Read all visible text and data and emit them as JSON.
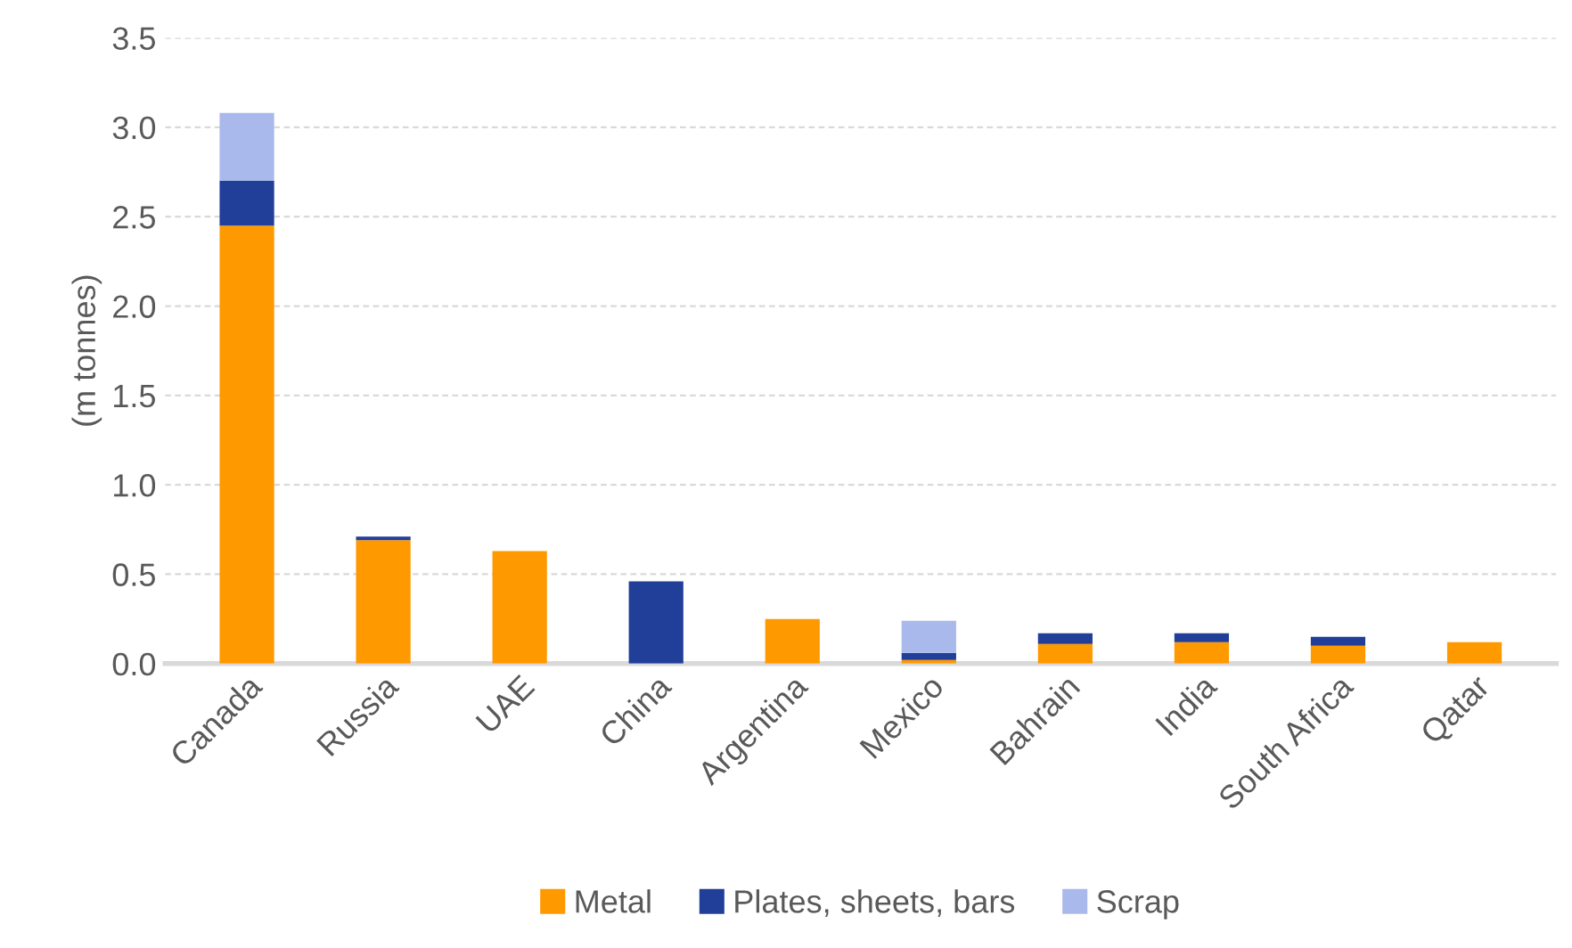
{
  "chart_data": {
    "type": "bar",
    "stacked": true,
    "ylabel": "(m tonnes)",
    "categories": [
      "Canada",
      "Russia",
      "UAE",
      "China",
      "Argentina",
      "Mexico",
      "Bahrain",
      "India",
      "South Africa",
      "Qatar"
    ],
    "series": [
      {
        "name": "Metal",
        "color": "#ff9900",
        "values": [
          2.45,
          0.69,
          0.63,
          0,
          0.25,
          0.02,
          0.11,
          0.12,
          0.1,
          0.12
        ]
      },
      {
        "name": "Plates, sheets, bars",
        "color": "#213f99",
        "values": [
          0.25,
          0.02,
          0,
          0.46,
          0,
          0.04,
          0.06,
          0.05,
          0.05,
          0
        ]
      },
      {
        "name": "Scrap",
        "color": "#a9b9eb",
        "values": [
          0.38,
          0,
          0,
          0,
          0,
          0.18,
          0,
          0,
          0,
          0
        ]
      }
    ],
    "ylim": [
      0,
      3.5
    ],
    "yticks": [
      {
        "value": 0,
        "label": "0.0"
      },
      0.5,
      {
        "value": 1,
        "label": "1.0"
      },
      1.5,
      {
        "value": 2,
        "label": "2.0"
      },
      2.5,
      {
        "value": 3,
        "label": "3.0"
      },
      3.5
    ],
    "grid": "y",
    "legend": "bottom"
  }
}
